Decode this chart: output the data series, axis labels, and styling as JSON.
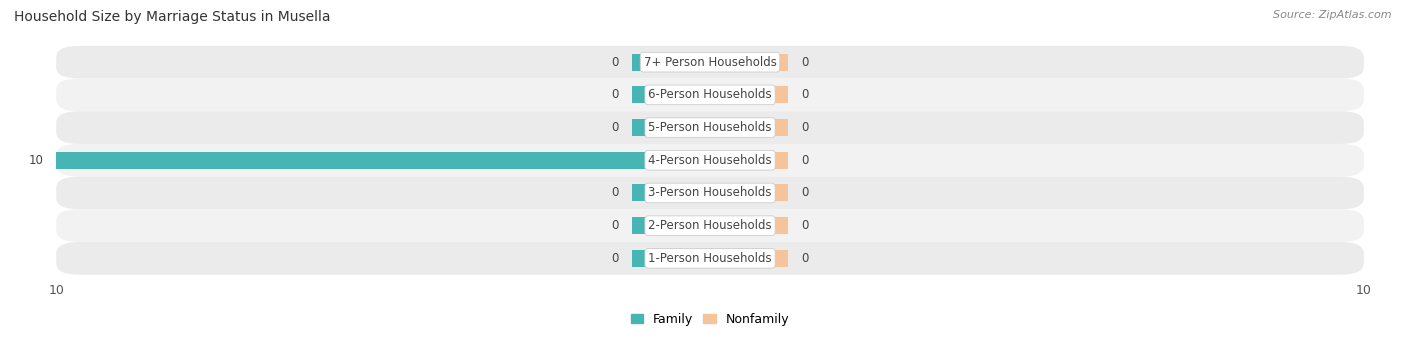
{
  "title": "Household Size by Marriage Status in Musella",
  "source": "Source: ZipAtlas.com",
  "categories": [
    "7+ Person Households",
    "6-Person Households",
    "5-Person Households",
    "4-Person Households",
    "3-Person Households",
    "2-Person Households",
    "1-Person Households"
  ],
  "family_values": [
    0,
    0,
    0,
    10,
    0,
    0,
    0
  ],
  "nonfamily_values": [
    0,
    0,
    0,
    0,
    0,
    0,
    0
  ],
  "family_color": "#48B5B5",
  "nonfamily_color": "#F5C49A",
  "xlim_left": -10,
  "xlim_right": 10,
  "bar_height": 0.52,
  "stub_size": 1.2,
  "row_bg_even": "#EBEBEB",
  "row_bg_odd": "#F2F2F2",
  "label_box_color": "#FFFFFF",
  "label_text_color": "#444444",
  "value_text_color": "#444444",
  "title_fontsize": 10,
  "axis_fontsize": 9,
  "label_fontsize": 8.5,
  "value_fontsize": 8.5,
  "source_fontsize": 8,
  "background_color": "#FFFFFF",
  "title_color": "#333333",
  "source_color": "#888888"
}
